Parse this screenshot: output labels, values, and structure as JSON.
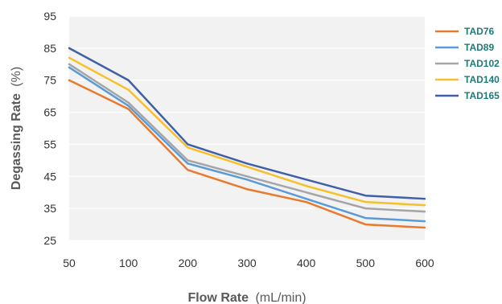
{
  "chart_data": {
    "type": "line",
    "xlabel": "Flow Rate",
    "xlabel_unit": "(mL/min)",
    "ylabel": "Degassing Rate",
    "ylabel_unit": "(%)",
    "categories": [
      "50",
      "100",
      "200",
      "300",
      "400",
      "500",
      "600"
    ],
    "ylim": [
      25,
      95
    ],
    "yticks": [
      25,
      35,
      45,
      55,
      65,
      75,
      85,
      95
    ],
    "grid": "horizontal",
    "legend_position": "right",
    "background": "#f2f2f2",
    "series": [
      {
        "name": "TAD76",
        "color": "#e87a2e",
        "values": [
          75,
          66,
          47,
          41,
          37,
          30,
          29
        ]
      },
      {
        "name": "TAD89",
        "color": "#5b9bd5",
        "values": [
          79,
          67,
          49,
          44,
          38,
          32,
          31
        ]
      },
      {
        "name": "TAD102",
        "color": "#a5a5a5",
        "values": [
          80,
          68,
          50,
          45,
          40,
          35,
          34
        ]
      },
      {
        "name": "TAD140",
        "color": "#f7c02b",
        "values": [
          82,
          72,
          54,
          48,
          42,
          37,
          36
        ]
      },
      {
        "name": "TAD165",
        "color": "#3f5fa8",
        "values": [
          85,
          75,
          55,
          49,
          44,
          39,
          38
        ]
      }
    ]
  }
}
